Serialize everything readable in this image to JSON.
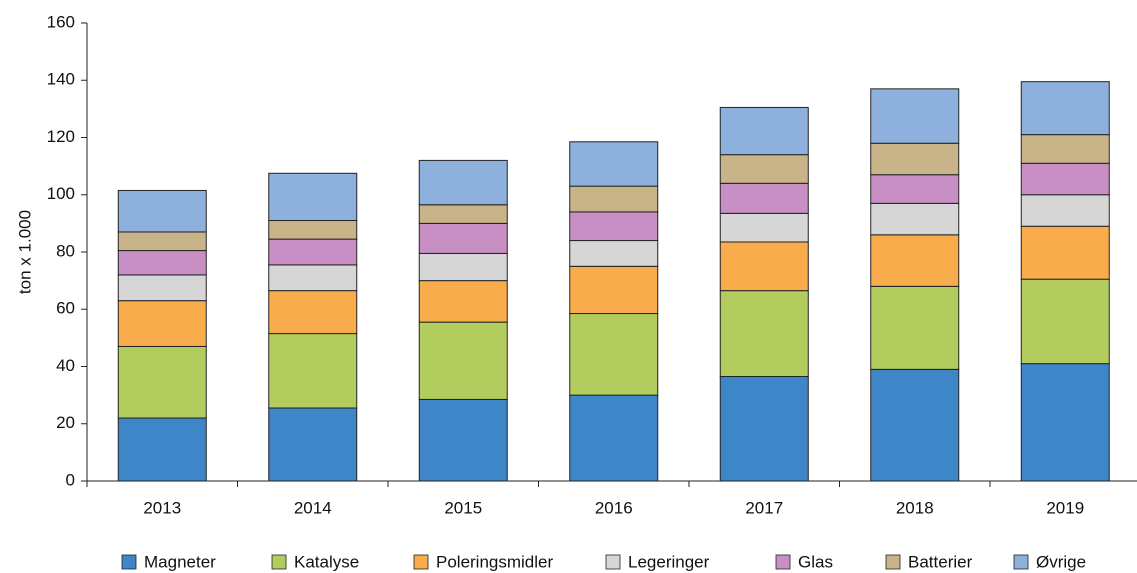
{
  "chart_data": {
    "type": "stacked_bar",
    "y_label": "ton x 1.000",
    "categories": [
      "2013",
      "2014",
      "2015",
      "2016",
      "2017",
      "2018",
      "2019"
    ],
    "series": [
      {
        "name": "Magneter",
        "color": "#3f86c8",
        "values": [
          22,
          25.5,
          28.5,
          30,
          36.5,
          39,
          41
        ]
      },
      {
        "name": "Katalyse",
        "color": "#b2cd5e",
        "values": [
          25,
          26,
          27,
          28.5,
          30,
          29,
          29.5
        ]
      },
      {
        "name": "Poleringsmidler",
        "color": "#f8ac4b",
        "values": [
          16,
          15,
          14.5,
          16.5,
          17,
          18,
          18.5
        ]
      },
      {
        "name": "Legeringer",
        "color": "#d6d6d6",
        "values": [
          9,
          9,
          9.5,
          9,
          10,
          11,
          11
        ]
      },
      {
        "name": "Glas",
        "color": "#c88fc4",
        "values": [
          8.5,
          9,
          10.5,
          10,
          10.5,
          10,
          11
        ]
      },
      {
        "name": "Batterier",
        "color": "#c9b48a",
        "values": [
          6.5,
          6.5,
          6.5,
          9,
          10,
          11,
          10
        ]
      },
      {
        "name": "Øvrige",
        "color": "#8eb0dd",
        "values": [
          14.5,
          16.5,
          15.5,
          15.5,
          16.5,
          19,
          18.5
        ]
      }
    ],
    "ylim": [
      0,
      160
    ],
    "yticks": [
      0,
      20,
      40,
      60,
      80,
      100,
      120,
      140,
      160
    ],
    "legend": "bottom"
  }
}
